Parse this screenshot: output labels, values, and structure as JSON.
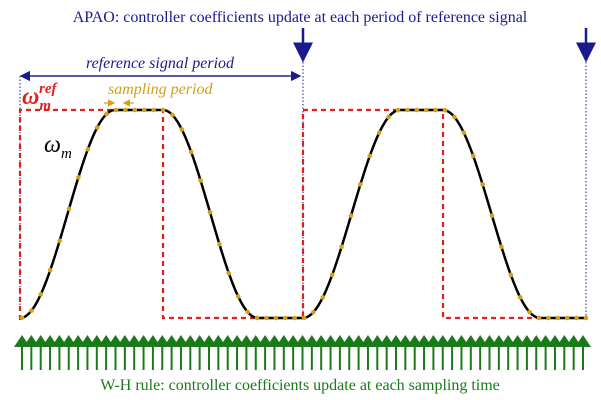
{
  "header": {
    "title": "APAO: controller coefficients update at each period of reference signal"
  },
  "labels": {
    "reference_period": "reference signal period",
    "omega_ref": {
      "symbol": "ω",
      "subscript": "m",
      "superscript": "ref"
    },
    "sampling_period": "sampling period",
    "omega": {
      "symbol": "ω",
      "subscript": "m"
    }
  },
  "footer": {
    "caption": "W-H rule: controller coefficients update at each sampling time"
  }
}
